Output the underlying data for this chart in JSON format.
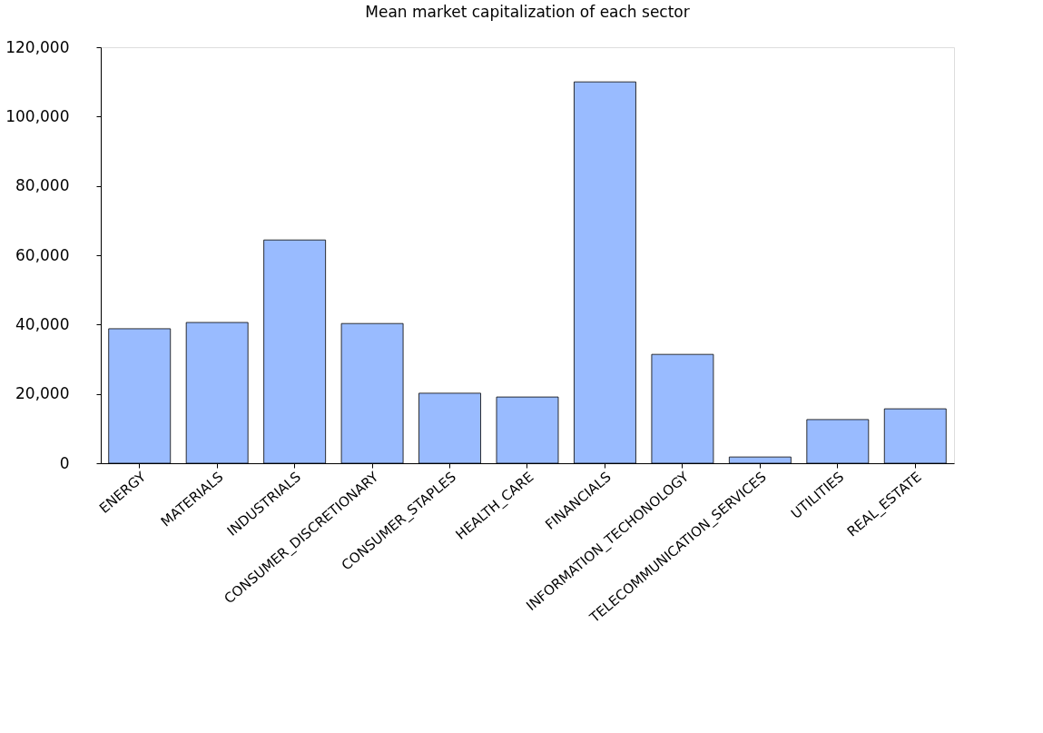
{
  "chart_data": {
    "type": "bar",
    "title": "Mean market capitalization of each sector",
    "categories": [
      "ENERGY",
      "MATERIALS",
      "INDUSTRIALS",
      "CONSUMER_DISCRETIONARY",
      "CONSUMER_STAPLES",
      "HEALTH_CARE",
      "FINANCIALS",
      "INFORMATION_TECHONOLOGY",
      "TELECOMMUNICATION_SERVICES",
      "UTILITIES",
      "REAL_ESTATE"
    ],
    "values": [
      38800,
      40600,
      64400,
      40300,
      20200,
      19100,
      110000,
      31400,
      1800,
      12600,
      15700
    ],
    "color": "#99bbff",
    "ylim": [
      0,
      120000
    ],
    "yticks": [
      0,
      {
        "value": 20000,
        "label": "20,000"
      },
      {
        "value": 40000,
        "label": "40,000"
      },
      {
        "value": 60000,
        "label": "60,000"
      },
      {
        "value": 80000,
        "label": "80,000"
      },
      {
        "value": 100000,
        "label": "100,000"
      },
      {
        "value": 120000,
        "label": "120,000"
      }
    ],
    "grid": false
  }
}
